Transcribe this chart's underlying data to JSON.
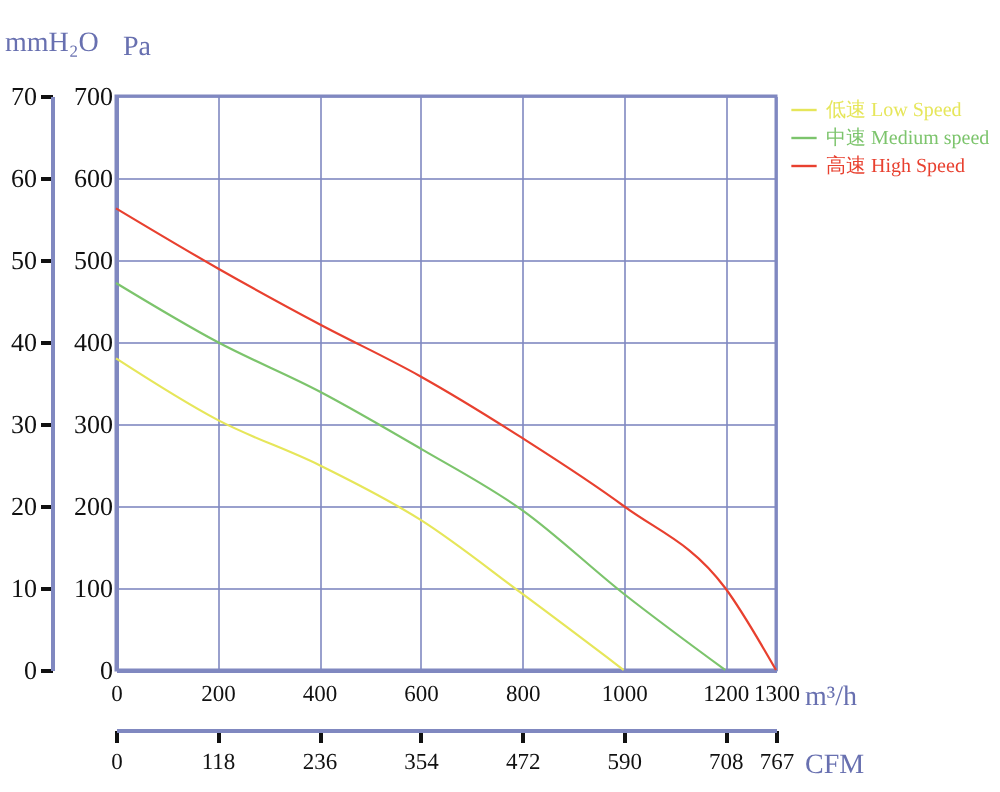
{
  "chart_data": {
    "type": "line",
    "ylabel": "mmH₂O",
    "y2label": "Pa",
    "xlabel": "m³/h",
    "x2label": "CFM",
    "x": [
      0,
      200,
      400,
      600,
      800,
      1000,
      1200,
      1300
    ],
    "series": [
      {
        "name": "低速 Low Speed",
        "color": "#e6e65a",
        "values": [
          38,
          30.5,
          25,
          18.3,
          9.3,
          0,
          null,
          null
        ]
      },
      {
        "name": "中速 Medium speed",
        "color": "#7cc46c",
        "values": [
          47.2,
          40,
          34,
          27,
          19.5,
          9.3,
          0,
          null
        ]
      },
      {
        "name": "高速 High Speed",
        "color": "#e8402f",
        "values": [
          56.3,
          49,
          42.2,
          35.8,
          28.3,
          20,
          10,
          0
        ]
      }
    ],
    "xlim": [
      0,
      1300
    ],
    "xticks": [
      0,
      200,
      400,
      600,
      800,
      1000,
      1200,
      1300
    ],
    "x2lim": [
      0,
      767
    ],
    "x2ticks": [
      0,
      118,
      236,
      354,
      472,
      590,
      708,
      767
    ],
    "ylim": [
      0,
      70
    ],
    "yticks": [
      0,
      10,
      20,
      30,
      40,
      50,
      60,
      70
    ],
    "y2lim": [
      0,
      700
    ],
    "y2ticks": [
      0,
      100,
      200,
      300,
      400,
      500,
      600,
      700
    ],
    "grid": true,
    "legend": "top right",
    "marker": "none",
    "line_style": "solid"
  }
}
